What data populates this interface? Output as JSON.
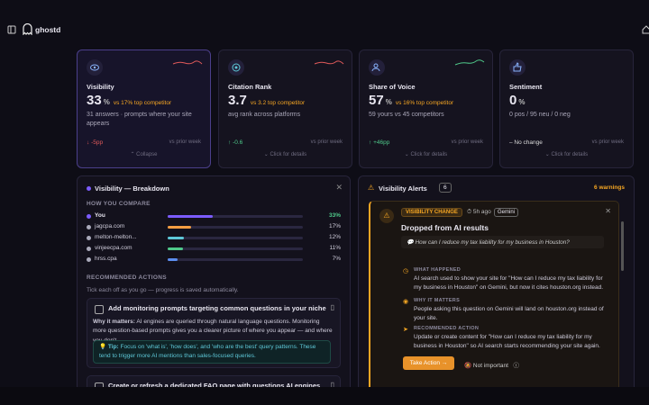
{
  "header": {
    "brand": "ghostd"
  },
  "cards": [
    {
      "title": "Visibility",
      "value": "33",
      "unit": "%",
      "comparison": "vs 17% top competitor",
      "description": "31 answers · prompts where your site appears",
      "delta": "-5pp",
      "period": "vs prior week",
      "action": "Collapse"
    },
    {
      "title": "Citation Rank",
      "value": "3.7",
      "comparison": "vs 3.2 top competitor",
      "description": "avg rank across platforms",
      "delta": "-0.6",
      "period": "vs prior week",
      "action": "Click for details"
    },
    {
      "title": "Share of Voice",
      "value": "57",
      "unit": "%",
      "comparison": "vs 16% top competitor",
      "description": "59 yours vs 45 competitors",
      "delta": "+46pp",
      "period": "vs prior week",
      "action": "Click for details"
    },
    {
      "title": "Sentiment",
      "value": "0",
      "unit": "%",
      "description": "0 pos / 95 neu / 0 neg",
      "delta": "No change",
      "period": "vs prior week",
      "action": "Click for details"
    }
  ],
  "breakdown": {
    "title": "Visibility — Breakdown",
    "compare_heading": "HOW YOU COMPARE",
    "rows": [
      {
        "name": "You",
        "value": 33,
        "value_label": "33%",
        "color": "#7c5cff"
      },
      {
        "name": "jagcpa.com",
        "value": 17,
        "value_label": "17%",
        "color": "#f59e42"
      },
      {
        "name": "melton-melton...",
        "value": 12,
        "value_label": "12%",
        "color": "#5ec8d8"
      },
      {
        "name": "vinjeecpa.com",
        "value": 11,
        "value_label": "11%",
        "color": "#4fc98a"
      },
      {
        "name": "hrss.cpa",
        "value": 7,
        "value_label": "7%",
        "color": "#5b8dee"
      }
    ],
    "actions_heading": "RECOMMENDED ACTIONS",
    "actions_note": "Tick each off as you go — progress is saved automatically.",
    "actions": [
      {
        "title": "Add monitoring prompts targeting common questions in your niche",
        "why_label": "Why it matters:",
        "why": "AI engines are queried through natural language questions. Monitoring more question-based prompts gives you a clearer picture of where you appear — and where you don't.",
        "tip_label": "Tip:",
        "tip": "Focus on 'what is', 'how does', and 'who are the best' query patterns. These tend to trigger more AI mentions than sales-focused queries."
      },
      {
        "title": "Create or refresh a dedicated FAQ page with questions AI engines"
      }
    ]
  },
  "alerts": {
    "title": "Visibility Alerts",
    "count": "6",
    "summary": "6 warnings",
    "alert": {
      "tag": "VISIBILITY CHANGE",
      "time": "5h ago",
      "platform": "Gemini",
      "title": "Dropped from AI results",
      "query": "How can I reduce my tax liability for my business in Houston?",
      "sections": [
        {
          "heading": "WHAT HAPPENED",
          "text": "AI search used to show your site for \"How can I reduce my tax liability for my business in Houston\" on Gemini, but now it cites houston.org instead."
        },
        {
          "heading": "WHY IT MATTERS",
          "text": "People asking this question on Gemini will land on houston.org instead of your site."
        },
        {
          "heading": "RECOMMENDED ACTION",
          "text": "Update or create content for \"How can I reduce my tax liability for my business in Houston\" so AI search starts recommending your site again."
        }
      ],
      "primary_button": "Take Action",
      "secondary_button": "Not important"
    }
  }
}
